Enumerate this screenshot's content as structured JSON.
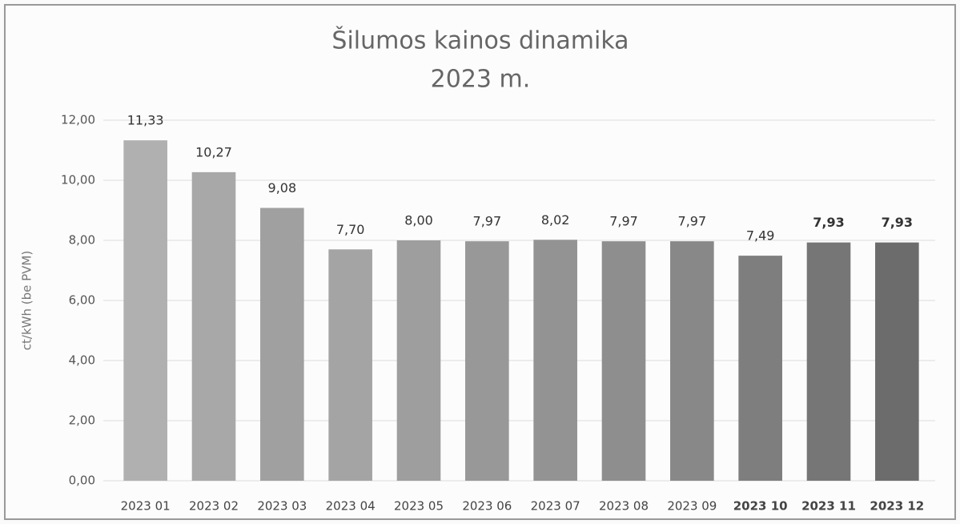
{
  "chart_data": {
    "type": "bar",
    "title": "Šilumos kainos dinamika",
    "subtitle": "2023 m.",
    "y_label": "ct/kWh (be PVM)",
    "categories": [
      "2023 01",
      "2023 02",
      "2023 03",
      "2023 04",
      "2023 05",
      "2023 06",
      "2023 07",
      "2023 08",
      "2023 09",
      "2023 10",
      "2023 11",
      "2023 12"
    ],
    "values": [
      11.33,
      10.27,
      9.08,
      7.7,
      8.0,
      7.97,
      8.02,
      7.97,
      7.97,
      7.49,
      7.93,
      7.93
    ],
    "value_labels": [
      "11,33",
      "10,27",
      "9,08",
      "7,70",
      "8,00",
      "7,97",
      "8,02",
      "7,97",
      "7,97",
      "7,49",
      "7,93",
      "7,93"
    ],
    "colors": [
      "#b0b0b0",
      "#a8a8a8",
      "#a0a0a0",
      "#a4a4a4",
      "#9e9e9e",
      "#989898",
      "#939393",
      "#8e8e8e",
      "#888888",
      "#7e7e7e",
      "#767676",
      "#6c6c6c"
    ],
    "ylim": [
      0,
      12
    ],
    "yticks": [
      {
        "value": 0,
        "label": "0,00"
      },
      {
        "value": 2,
        "label": "2,00"
      },
      {
        "value": 4,
        "label": "4,00"
      },
      {
        "value": 6,
        "label": "6,00"
      },
      {
        "value": 8,
        "label": "8,00"
      },
      {
        "value": 10,
        "label": "10,00"
      },
      {
        "value": 12,
        "label": "12,00"
      }
    ],
    "grid": true
  }
}
